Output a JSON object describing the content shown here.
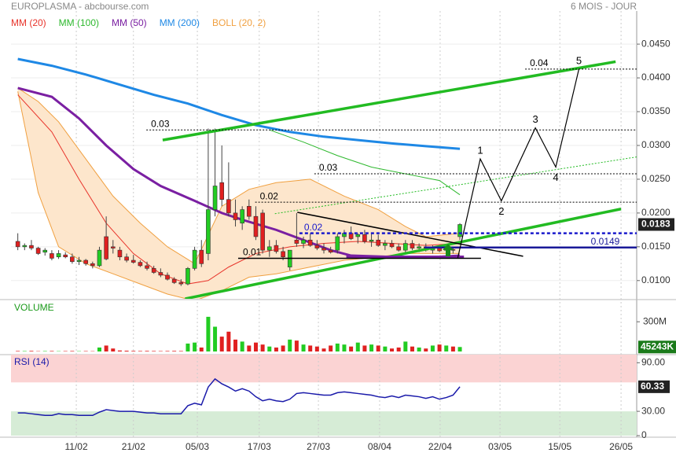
{
  "header": {
    "title": "EUROPLASMA - abcbourse.com",
    "period": "6 MOIS - JOUR"
  },
  "chart_data": {
    "type": "candlestick",
    "xlim": [
      -1,
      91
    ],
    "xticks": [
      {
        "value": 8.6,
        "label": "11/02"
      },
      {
        "value": 17.0,
        "label": "21/02"
      },
      {
        "value": 26.4,
        "label": "05/03"
      },
      {
        "value": 35.5,
        "label": "17/03"
      },
      {
        "value": 44.2,
        "label": "27/03"
      },
      {
        "value": 53.2,
        "label": "08/04"
      },
      {
        "value": 62.1,
        "label": "22/04"
      },
      {
        "value": 70.9,
        "label": "03/05"
      },
      {
        "value": 79.7,
        "label": "15/05"
      },
      {
        "value": 88.7,
        "label": "26/05"
      }
    ],
    "ylim": [
      0.0073,
      0.0499
    ],
    "yticks": [
      {
        "value": 0.01,
        "label": "0.0100"
      },
      {
        "value": 0.015,
        "label": "0.0150"
      },
      {
        "value": 0.02,
        "label": "0.0200"
      },
      {
        "value": 0.025,
        "label": "0.0250"
      },
      {
        "value": 0.03,
        "label": "0.0300"
      },
      {
        "value": 0.035,
        "label": "0.0350"
      },
      {
        "value": 0.04,
        "label": "0.0400"
      },
      {
        "value": 0.045,
        "label": "0.0450"
      }
    ],
    "grid": true,
    "up_color": "#22cc22",
    "down_color": "#e02020",
    "open": [
      0.0158,
      0.015,
      0.0152,
      0.0148,
      0.0142,
      0.014,
      0.0135,
      0.0138,
      0.0135,
      0.0128,
      0.013,
      0.0125,
      0.0122,
      0.0165,
      0.015,
      0.0145,
      0.0135,
      0.013,
      0.0127,
      0.0122,
      0.0118,
      0.0112,
      0.0108,
      0.0102,
      0.0097,
      0.0095,
      0.0118,
      0.0145,
      0.014,
      0.0205,
      0.0245,
      0.022,
      0.02,
      0.0185,
      0.021,
      0.0195,
      0.02,
      0.0145,
      0.0152,
      0.0143,
      0.012,
      0.016,
      0.0155,
      0.016,
      0.0152,
      0.0148,
      0.0145,
      0.0145,
      0.0165,
      0.017,
      0.0165,
      0.0168,
      0.0158,
      0.016,
      0.0152,
      0.0155,
      0.015,
      0.0145,
      0.0155,
      0.0148,
      0.015,
      0.0145,
      0.0148,
      0.0145,
      0.0146,
      0.0165
    ],
    "high": [
      0.017,
      0.0155,
      0.016,
      0.015,
      0.0148,
      0.0145,
      0.0145,
      0.0142,
      0.014,
      0.0135,
      0.0132,
      0.0128,
      0.015,
      0.0195,
      0.016,
      0.015,
      0.014,
      0.0138,
      0.013,
      0.0128,
      0.0122,
      0.0118,
      0.0112,
      0.0105,
      0.0102,
      0.012,
      0.015,
      0.016,
      0.0325,
      0.0325,
      0.03,
      0.0275,
      0.022,
      0.021,
      0.022,
      0.021,
      0.0205,
      0.016,
      0.016,
      0.015,
      0.0145,
      0.02,
      0.0165,
      0.017,
      0.016,
      0.0155,
      0.015,
      0.017,
      0.0175,
      0.018,
      0.017,
      0.0175,
      0.017,
      0.0168,
      0.016,
      0.016,
      0.0155,
      0.016,
      0.016,
      0.0155,
      0.0155,
      0.0152,
      0.0152,
      0.015,
      0.015,
      0.0185
    ],
    "low": [
      0.0145,
      0.0145,
      0.0145,
      0.0138,
      0.0137,
      0.013,
      0.0132,
      0.0133,
      0.0125,
      0.0123,
      0.0122,
      0.0118,
      0.012,
      0.013,
      0.014,
      0.013,
      0.0127,
      0.0125,
      0.012,
      0.0115,
      0.011,
      0.0105,
      0.01,
      0.0095,
      0.0092,
      0.0093,
      0.0115,
      0.012,
      0.013,
      0.0195,
      0.021,
      0.0195,
      0.018,
      0.0175,
      0.019,
      0.016,
      0.014,
      0.0135,
      0.014,
      0.013,
      0.0115,
      0.015,
      0.0148,
      0.015,
      0.0145,
      0.014,
      0.014,
      0.014,
      0.0155,
      0.016,
      0.0155,
      0.0155,
      0.015,
      0.015,
      0.0145,
      0.0148,
      0.0143,
      0.014,
      0.0145,
      0.0142,
      0.0143,
      0.014,
      0.0142,
      0.014,
      0.014,
      0.016
    ],
    "close": [
      0.015,
      0.0152,
      0.0148,
      0.014,
      0.0145,
      0.0133,
      0.014,
      0.0135,
      0.0128,
      0.013,
      0.0125,
      0.0122,
      0.0145,
      0.0132,
      0.0148,
      0.0135,
      0.013,
      0.0127,
      0.0122,
      0.0118,
      0.0112,
      0.0108,
      0.0102,
      0.0097,
      0.0095,
      0.0118,
      0.0145,
      0.0125,
      0.0205,
      0.024,
      0.022,
      0.02,
      0.019,
      0.0205,
      0.0195,
      0.0165,
      0.0145,
      0.015,
      0.0143,
      0.0135,
      0.0145,
      0.0155,
      0.016,
      0.0152,
      0.0148,
      0.0145,
      0.0142,
      0.0165,
      0.017,
      0.0162,
      0.0168,
      0.0158,
      0.016,
      0.0152,
      0.0155,
      0.015,
      0.0145,
      0.0155,
      0.0148,
      0.015,
      0.0145,
      0.0148,
      0.0144,
      0.0146,
      0.0145,
      0.0183
    ],
    "last_label": {
      "value": 0.0183,
      "label": "0.0183"
    },
    "bollinger": {
      "name": "BOLL (20, 2)",
      "color": "#f0a040",
      "fill": "#fde6cc",
      "x": [
        0,
        3,
        6,
        10,
        14,
        18,
        22,
        26,
        30,
        34,
        38,
        43,
        48,
        53,
        57,
        60,
        65
      ],
      "upper": [
        0.0385,
        0.0365,
        0.0335,
        0.028,
        0.0225,
        0.0185,
        0.015,
        0.0125,
        0.021,
        0.0235,
        0.0245,
        0.025,
        0.0225,
        0.0205,
        0.018,
        0.0165,
        0.017
      ],
      "lower": [
        0.038,
        0.023,
        0.015,
        0.0125,
        0.011,
        0.0095,
        0.008,
        0.007,
        0.0085,
        0.0105,
        0.011,
        0.012,
        0.013,
        0.0135,
        0.014,
        0.014,
        0.014
      ]
    },
    "series": [
      {
        "name": "MM (20)",
        "color": "#e8332a",
        "x": [
          0,
          5,
          9,
          13,
          17,
          21,
          25,
          28,
          31,
          35,
          40,
          45,
          50,
          55,
          60,
          65
        ],
        "values": [
          0.0375,
          0.032,
          0.025,
          0.0185,
          0.014,
          0.011,
          0.0095,
          0.01,
          0.012,
          0.014,
          0.015,
          0.0155,
          0.0158,
          0.0155,
          0.0152,
          0.0155
        ]
      },
      {
        "name": "MM (100)",
        "color": "#2db82d",
        "x": [
          37,
          42,
          47,
          52,
          57,
          62,
          65
        ],
        "values": [
          0.0323,
          0.0305,
          0.0285,
          0.0268,
          0.0258,
          0.0248,
          0.0227
        ]
      },
      {
        "name": "MM (50)",
        "color": "#7a1fa2",
        "x": [
          0,
          5,
          9,
          13,
          17,
          21,
          26,
          30,
          33,
          38,
          42,
          46,
          49,
          55,
          60,
          65
        ],
        "values": [
          0.0385,
          0.0372,
          0.034,
          0.03,
          0.0265,
          0.024,
          0.0218,
          0.02,
          0.019,
          0.0175,
          0.016,
          0.0145,
          0.0137,
          0.0135,
          0.0134,
          0.0137
        ]
      },
      {
        "name": "MM (200)",
        "color": "#1e88e5",
        "x": [
          0,
          5,
          10,
          15,
          20,
          25,
          30,
          35,
          40,
          45,
          50,
          55,
          60,
          65
        ],
        "values": [
          0.0428,
          0.0418,
          0.0405,
          0.039,
          0.0375,
          0.0362,
          0.0345,
          0.033,
          0.032,
          0.0313,
          0.0308,
          0.0303,
          0.0299,
          0.0295
        ]
      }
    ],
    "trendlines": [
      {
        "color": "#22bb22",
        "style": "thick",
        "x": [
          21.3,
          87.9
        ],
        "y": [
          0.0308,
          0.0424
        ]
      },
      {
        "color": "#22bb22",
        "style": "thick",
        "x": [
          24.6,
          88.7
        ],
        "y": [
          0.0073,
          0.0206
        ]
      },
      {
        "color": "#000000",
        "style": "solid",
        "x": [
          41.1,
          74.3
        ],
        "y": [
          0.0201,
          0.0136
        ]
      },
      {
        "color": "#22bb22",
        "style": "dotted",
        "x": [
          37.8,
          91
        ],
        "y": [
          0.0199,
          0.0283
        ]
      },
      {
        "color": "#7a1fa2",
        "style": "thick",
        "x": [
          48.3,
          65.6
        ],
        "y": [
          0.0135,
          0.0135
        ]
      }
    ],
    "levels": [
      {
        "label": "0.03",
        "value": 0.0323,
        "from": 18.9,
        "to": 91,
        "color": "#000000",
        "style": "dotted"
      },
      {
        "label": "0.03",
        "value": 0.0258,
        "from": 43.6,
        "to": 91,
        "color": "#000000",
        "style": "dotted"
      },
      {
        "label": "0.02",
        "value": 0.0216,
        "from": 34.9,
        "to": 91,
        "color": "#000000",
        "style": "dotted"
      },
      {
        "label": "0.01",
        "value": 0.0133,
        "from": 32.4,
        "to": 68.1,
        "color": "#000000",
        "style": "solid"
      },
      {
        "label": "0.04",
        "value": 0.0413,
        "from": 74.6,
        "to": 91,
        "color": "#000000",
        "style": "dotted"
      },
      {
        "label": "0.02",
        "value": 0.017,
        "from": 41.4,
        "to": 91,
        "color": "#1a1acc",
        "style": "dashed"
      }
    ],
    "price_line": {
      "value": 0.0149,
      "label": "0.0149",
      "from": 59.8,
      "to": 91,
      "color": "#1a1a99"
    },
    "waves": {
      "x": [
        64.7,
        68.0,
        71.1,
        76.1,
        79.1,
        82.5
      ],
      "y": [
        0.0134,
        0.028,
        0.0218,
        0.0326,
        0.0268,
        0.0413
      ],
      "labels": [
        "1",
        "2",
        "3",
        "4",
        "5"
      ]
    },
    "volume": {
      "title": "VOLUME",
      "ylim": [
        0,
        500000000
      ],
      "yticks": [
        {
          "value": 300000000,
          "label": "300M"
        }
      ],
      "values": [
        5000000,
        4000000,
        6000000,
        3000000,
        4000000,
        5000000,
        3000000,
        4000000,
        5000000,
        3000000,
        4000000,
        3000000,
        40000000,
        60000000,
        30000000,
        10000000,
        8000000,
        6000000,
        5000000,
        6000000,
        5000000,
        4000000,
        5000000,
        6000000,
        5000000,
        80000000,
        90000000,
        40000000,
        350000000,
        250000000,
        150000000,
        200000000,
        120000000,
        100000000,
        60000000,
        90000000,
        70000000,
        50000000,
        40000000,
        60000000,
        120000000,
        110000000,
        70000000,
        60000000,
        50000000,
        30000000,
        60000000,
        80000000,
        70000000,
        50000000,
        90000000,
        60000000,
        70000000,
        60000000,
        50000000,
        30000000,
        40000000,
        100000000,
        50000000,
        40000000,
        30000000,
        60000000,
        70000000,
        60000000,
        50000000,
        45243000
      ],
      "last_label": {
        "value": 45243000,
        "label": "45243K"
      }
    },
    "rsi": {
      "title": "RSI (14)",
      "color": "#1a1aaa",
      "ylim": [
        0,
        100
      ],
      "yticks": [
        {
          "value": 90,
          "label": "90.00"
        },
        {
          "value": 30,
          "label": "30.00"
        },
        0
      ],
      "values": [
        28,
        28,
        27,
        26,
        25,
        25,
        27,
        26,
        26,
        25,
        25,
        25,
        29,
        32,
        31,
        30,
        30,
        30,
        29,
        28,
        28,
        27,
        27,
        27,
        27,
        37,
        40,
        38,
        60,
        70,
        64,
        60,
        55,
        58,
        55,
        48,
        43,
        45,
        43,
        42,
        45,
        52,
        53,
        52,
        51,
        50,
        50,
        53,
        54,
        53,
        52,
        51,
        50,
        48,
        47,
        49,
        47,
        50,
        49,
        48,
        46,
        48,
        45,
        47,
        50,
        60.33
      ],
      "last_label": {
        "value": 60.33,
        "label": "60.33"
      }
    }
  }
}
